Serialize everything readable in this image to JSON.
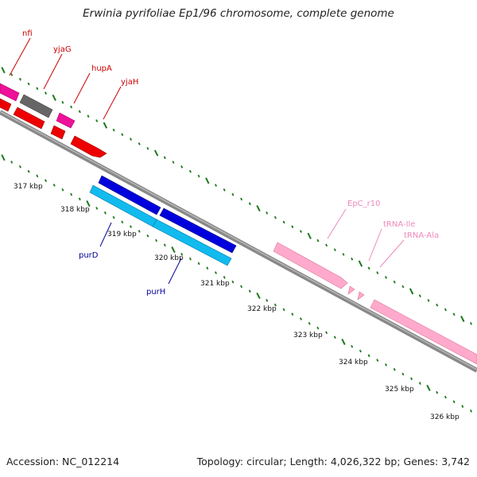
{
  "title": "Erwinia pyrifoliae Ep1/96 chromosome, complete genome",
  "footer": {
    "accession": "Accession: NC_012214",
    "topology": "Topology: circular; Length: 4,026,322 bp; Genes: 3,742"
  },
  "colors": {
    "backbone": "#888888",
    "tick": "#1a7a1a",
    "gene_label_red": "#cc0000",
    "gene_label_blue": "#000099",
    "gene_label_pink": "#ee88bb"
  },
  "kbp_labels": [
    "317 kbp",
    "318 kbp",
    "319 kbp",
    "320 kbp",
    "321 kbp",
    "322 kbp",
    "323 kbp",
    "324 kbp",
    "325 kbp",
    "326 kbp"
  ],
  "features": [
    {
      "name": "nfi",
      "color": "#ee1199"
    },
    {
      "name": "yjaG",
      "color": "#666666"
    },
    {
      "name": "hupA",
      "color": "#ee1199"
    },
    {
      "name": "yjaH",
      "color": "#ee0000"
    },
    {
      "name": "purD",
      "color": "#0000dd"
    },
    {
      "name": "purH",
      "color": "#11bbee"
    },
    {
      "name": "EpC_r10",
      "color": "#ffaacc"
    },
    {
      "name": "tRNA-Ile",
      "color": "#ffaacc"
    },
    {
      "name": "tRNA-Ala",
      "color": "#ffaacc"
    }
  ]
}
